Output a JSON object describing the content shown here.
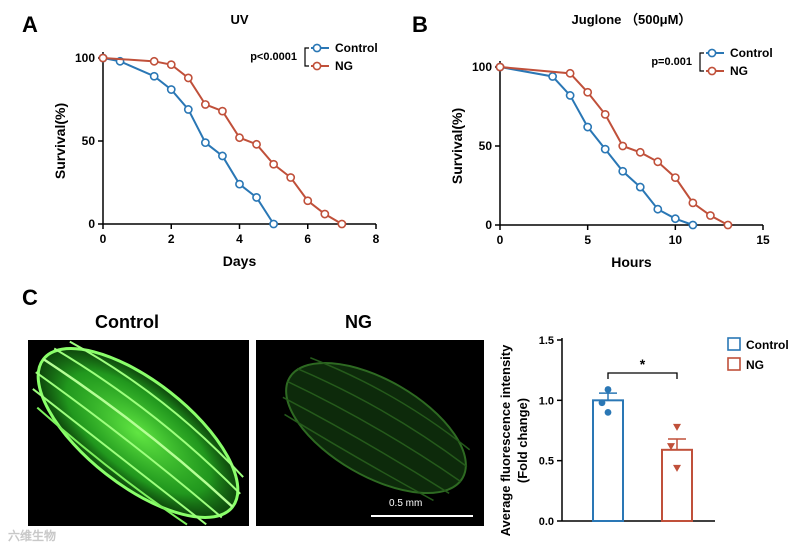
{
  "panels": {
    "A": "A",
    "B": "B",
    "C": "C"
  },
  "colors": {
    "control": "#2a77b5",
    "ng": "#c0503a",
    "axis": "#000000"
  },
  "watermark": "六维生物",
  "micrographs": {
    "control_label": "Control",
    "ng_label": "NG",
    "scalebar_label": "0.5 mm"
  },
  "chart_data": [
    {
      "id": "A",
      "type": "line",
      "title": "UV",
      "xlabel": "Days",
      "ylabel": "Survival(%)",
      "xlim": [
        0,
        8
      ],
      "ylim": [
        0,
        100
      ],
      "xticks": [
        0,
        2,
        4,
        6,
        8
      ],
      "yticks": [
        0,
        50,
        100
      ],
      "stat": "p<0.0001",
      "legend_position": "top-right",
      "series": [
        {
          "name": "Control",
          "color_key": "control",
          "x": [
            0,
            0.5,
            1.5,
            2,
            2.5,
            3,
            3.5,
            4,
            4.5,
            5
          ],
          "y": [
            100,
            98,
            89,
            81,
            69,
            49,
            41,
            24,
            16,
            0
          ]
        },
        {
          "name": "NG",
          "color_key": "ng",
          "x": [
            0,
            1.5,
            2,
            2.5,
            3,
            3.5,
            4,
            4.5,
            5,
            5.5,
            6,
            6.5,
            7
          ],
          "y": [
            100,
            98,
            96,
            88,
            72,
            68,
            52,
            48,
            36,
            28,
            14,
            6,
            0
          ]
        }
      ]
    },
    {
      "id": "B",
      "type": "line",
      "title": "Juglone （500μM）",
      "xlabel": "Hours",
      "ylabel": "Survival(%)",
      "xlim": [
        0,
        15
      ],
      "ylim": [
        0,
        100
      ],
      "xticks": [
        0,
        5,
        10,
        15
      ],
      "yticks": [
        0,
        50,
        100
      ],
      "stat": "p=0.001",
      "legend_position": "top-right",
      "series": [
        {
          "name": "Control",
          "color_key": "control",
          "x": [
            0,
            3,
            4,
            5,
            6,
            7,
            8,
            9,
            10,
            11
          ],
          "y": [
            100,
            94,
            82,
            62,
            48,
            34,
            24,
            10,
            4,
            0
          ]
        },
        {
          "name": "NG",
          "color_key": "ng",
          "x": [
            0,
            4,
            5,
            6,
            7,
            8,
            9,
            10,
            11,
            12,
            13
          ],
          "y": [
            100,
            96,
            84,
            70,
            50,
            46,
            40,
            30,
            14,
            6,
            0
          ]
        }
      ]
    },
    {
      "id": "C",
      "type": "bar",
      "ylabel": "Average fluorescence intensity\n(Fold change)",
      "ylim": [
        0,
        1.5
      ],
      "yticks": [
        0.0,
        0.5,
        1.0,
        1.5
      ],
      "categories": [
        "Control",
        "NG"
      ],
      "values": [
        1.0,
        0.59
      ],
      "errors": [
        0.06,
        0.09
      ],
      "points": [
        [
          1.09,
          0.98,
          0.9
        ],
        [
          0.78,
          0.62,
          0.44
        ]
      ],
      "significance": "*",
      "legend_position": "top-right"
    }
  ]
}
